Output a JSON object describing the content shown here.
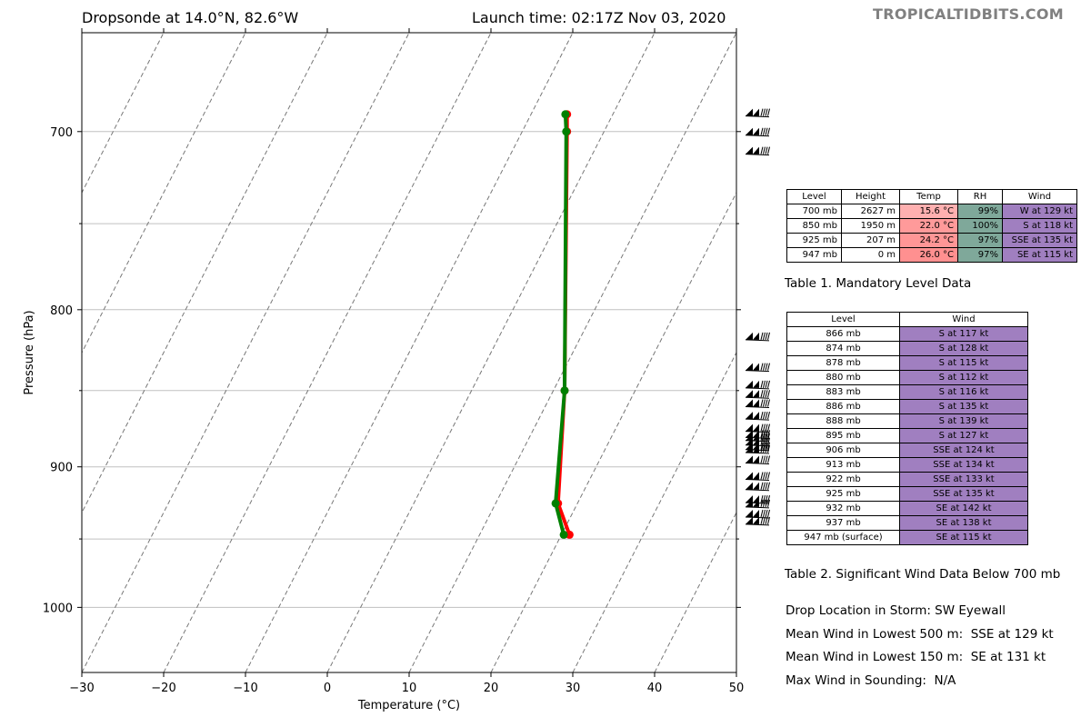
{
  "title_left": "Dropsonde at 14.0°N, 82.6°W",
  "title_right": "Launch time: 02:17Z Nov 03, 2020",
  "brand": "TROPICALTIDBITS.COM",
  "chart_data": {
    "type": "line",
    "title": "Dropsonde at 14.0°N, 82.6°W",
    "xlabel": "Temperature (°C)",
    "ylabel": "Pressure (hPa)",
    "xlim": [
      -30,
      50
    ],
    "ylim": [
      1050,
      650
    ],
    "y_scale": "log",
    "x_ticks": [
      -30,
      -20,
      -10,
      0,
      10,
      20,
      30,
      40,
      50
    ],
    "x_tick_labels": [
      "−30",
      "−20",
      "−10",
      "0",
      "10",
      "20",
      "30",
      "40",
      "50"
    ],
    "y_ticks": [
      700,
      800,
      900,
      1000
    ],
    "y_tick_labels": [
      "700",
      "800",
      "900",
      "1000"
    ],
    "minor_gridlines": [
      750,
      850,
      950
    ],
    "skew_isotherms": "dashed gray",
    "series": [
      {
        "color": "#ff0000",
        "points": [
          [
            29.3,
            691
          ],
          [
            29.3,
            700
          ],
          [
            29.0,
            850
          ],
          [
            28.2,
            925
          ],
          [
            29.6,
            947
          ]
        ]
      },
      {
        "color": "#008000",
        "points": [
          [
            29.1,
            691
          ],
          [
            29.2,
            700
          ],
          [
            29.0,
            850
          ],
          [
            27.9,
            925
          ],
          [
            28.9,
            947
          ]
        ]
      }
    ],
    "wind_barb_pressures": [
      690,
      700,
      710,
      816,
      835,
      846,
      852,
      858,
      866,
      874,
      878,
      880,
      883,
      886,
      888,
      895,
      906,
      913,
      922,
      925,
      932,
      937
    ]
  },
  "mandatory_table": {
    "headers": [
      "Level",
      "Height",
      "Temp",
      "RH",
      "Wind"
    ],
    "rows": [
      {
        "level": "700 mb",
        "height": "2627 m",
        "temp": "15.6 °C",
        "rh": "99%",
        "wind": "W at 129 kt",
        "temp_color": "#ffb0b0"
      },
      {
        "level": "850 mb",
        "height": "1950 m",
        "temp": "22.0 °C",
        "rh": "100%",
        "wind": "S at 118 kt",
        "temp_color": "#ff9a9a"
      },
      {
        "level": "925 mb",
        "height": "207 m",
        "temp": "24.2 °C",
        "rh": "97%",
        "wind": "SSE at 135 kt",
        "temp_color": "#ff9696"
      },
      {
        "level": "947 mb",
        "height": "0 m",
        "temp": "26.0 °C",
        "rh": "97%",
        "wind": "SE at 115 kt",
        "temp_color": "#ff9090"
      }
    ],
    "caption": "Table 1. Mandatory Level Data"
  },
  "significant_table": {
    "headers": [
      "Level",
      "Wind"
    ],
    "rows": [
      {
        "level": "866 mb",
        "wind": "S at 117 kt"
      },
      {
        "level": "874 mb",
        "wind": "S at 128 kt"
      },
      {
        "level": "878 mb",
        "wind": "S at 115 kt"
      },
      {
        "level": "880 mb",
        "wind": "S at 112 kt"
      },
      {
        "level": "883 mb",
        "wind": "S at 116 kt"
      },
      {
        "level": "886 mb",
        "wind": "S at 135 kt"
      },
      {
        "level": "888 mb",
        "wind": "S at 139 kt"
      },
      {
        "level": "895 mb",
        "wind": "S at 127 kt"
      },
      {
        "level": "906 mb",
        "wind": "SSE at 124 kt"
      },
      {
        "level": "913 mb",
        "wind": "SSE at 134 kt"
      },
      {
        "level": "922 mb",
        "wind": "SSE at 133 kt"
      },
      {
        "level": "925 mb",
        "wind": "SSE at 135 kt"
      },
      {
        "level": "932 mb",
        "wind": "SE at 142 kt"
      },
      {
        "level": "937 mb",
        "wind": "SE at 138 kt"
      },
      {
        "level": "947 mb (surface)",
        "wind": "SE at 115 kt"
      }
    ],
    "caption": "Table 2. Significant Wind Data Below 700 mb"
  },
  "info": {
    "drop_location": "Drop Location in Storm: SW Eyewall",
    "mean_wind_500": "Mean Wind in Lowest 500 m:  SSE at 129 kt",
    "mean_wind_150": "Mean Wind in Lowest 150 m:  SE at 131 kt",
    "max_wind": "Max Wind in Sounding:  N/A"
  },
  "colors": {
    "rh": "#7fa89a",
    "wind": "#a07fc0",
    "temperature_line": "#ff0000",
    "dewpoint_line": "#008000"
  }
}
